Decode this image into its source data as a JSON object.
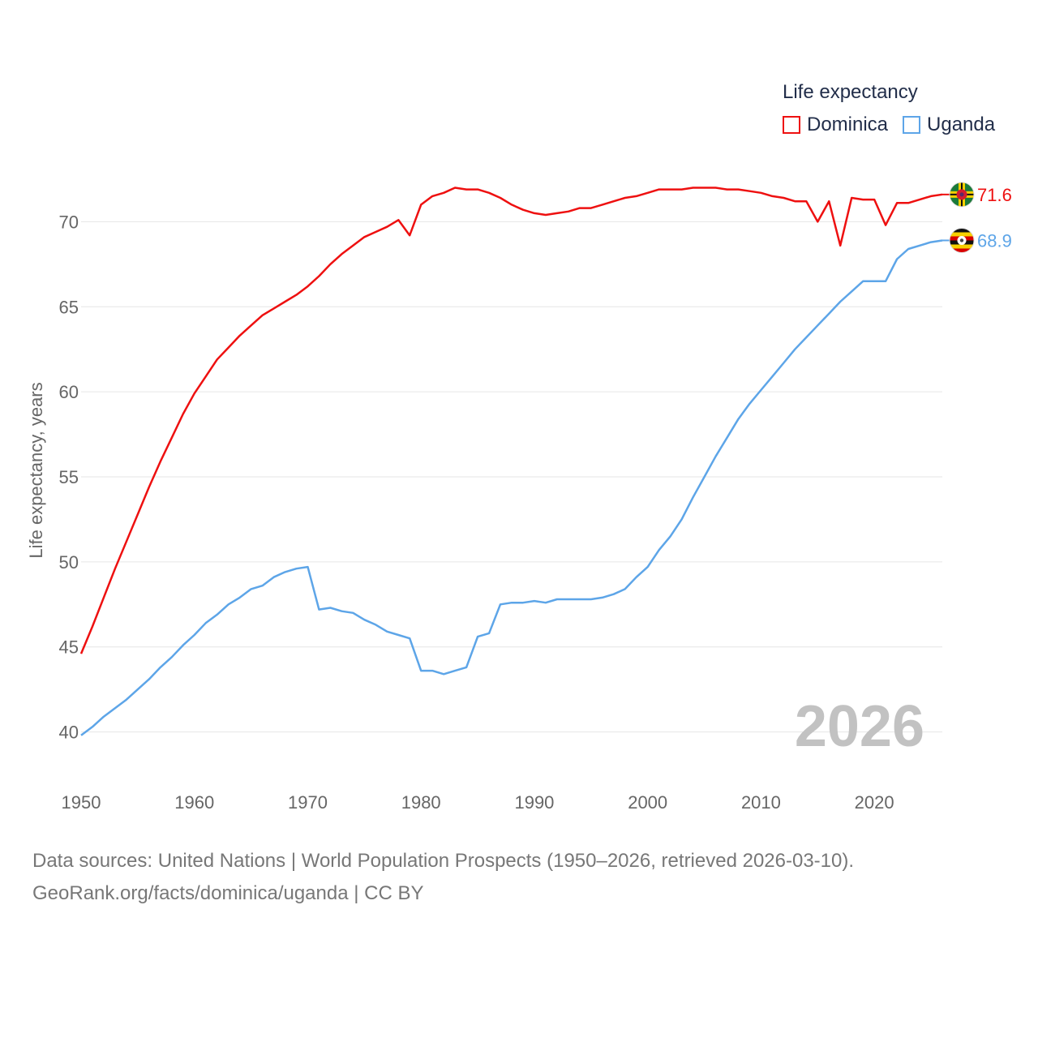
{
  "legend": {
    "title": "Life expectancy"
  },
  "footer": {
    "sources": "Data sources: United Nations | World Population Prospects (1950–2026, retrieved 2026-03-10).",
    "link": "GeoRank.org/facts/dominica/uganda | CC BY"
  },
  "chart_data": {
    "type": "line",
    "title": "",
    "legend_title": "Life expectancy",
    "ylabel": "Life expectancy, years",
    "xlabel": "",
    "xlim": [
      1950,
      2026
    ],
    "ylim": [
      37.5,
      73.5
    ],
    "x_ticks": [
      1950,
      1960,
      1970,
      1980,
      1990,
      2000,
      2010,
      2020
    ],
    "y_ticks": [
      40,
      45,
      50,
      55,
      60,
      65,
      70
    ],
    "grid": true,
    "legend_position": "top-right",
    "watermark_year": "2026",
    "x": [
      1950,
      1951,
      1952,
      1953,
      1954,
      1955,
      1956,
      1957,
      1958,
      1959,
      1960,
      1961,
      1962,
      1963,
      1964,
      1965,
      1966,
      1967,
      1968,
      1969,
      1970,
      1971,
      1972,
      1973,
      1974,
      1975,
      1976,
      1977,
      1978,
      1979,
      1980,
      1981,
      1982,
      1983,
      1984,
      1985,
      1986,
      1987,
      1988,
      1989,
      1990,
      1991,
      1992,
      1993,
      1994,
      1995,
      1996,
      1997,
      1998,
      1999,
      2000,
      2001,
      2002,
      2003,
      2004,
      2005,
      2006,
      2007,
      2008,
      2009,
      2010,
      2011,
      2012,
      2013,
      2014,
      2015,
      2016,
      2017,
      2018,
      2019,
      2020,
      2021,
      2022,
      2023,
      2024,
      2025,
      2026
    ],
    "series": [
      {
        "name": "Dominica",
        "color": "#ee1010",
        "end_label": "71.6",
        "flag": "dominica-flag",
        "values": [
          44.6,
          46.2,
          47.9,
          49.6,
          51.2,
          52.8,
          54.4,
          55.9,
          57.3,
          58.7,
          59.9,
          60.9,
          61.9,
          62.6,
          63.3,
          63.9,
          64.5,
          64.9,
          65.3,
          65.7,
          66.2,
          66.8,
          67.5,
          68.1,
          68.6,
          69.1,
          69.4,
          69.7,
          70.1,
          69.2,
          71.0,
          71.5,
          71.7,
          72.0,
          71.9,
          71.9,
          71.7,
          71.4,
          71.0,
          70.7,
          70.5,
          70.4,
          70.5,
          70.6,
          70.8,
          70.8,
          71.0,
          71.2,
          71.4,
          71.5,
          71.7,
          71.9,
          71.9,
          71.9,
          72.0,
          72.0,
          72.0,
          71.9,
          71.9,
          71.8,
          71.7,
          71.5,
          71.4,
          71.2,
          71.2,
          70.0,
          71.2,
          68.6,
          71.4,
          71.3,
          71.3,
          69.8,
          71.1,
          71.1,
          71.3,
          71.5,
          71.6
        ]
      },
      {
        "name": "Uganda",
        "color": "#5da5e8",
        "end_label": "68.9",
        "flag": "uganda-flag",
        "values": [
          39.8,
          40.3,
          40.9,
          41.4,
          41.9,
          42.5,
          43.1,
          43.8,
          44.4,
          45.1,
          45.7,
          46.4,
          46.9,
          47.5,
          47.9,
          48.4,
          48.6,
          49.1,
          49.4,
          49.6,
          49.7,
          47.2,
          47.3,
          47.1,
          47.0,
          46.6,
          46.3,
          45.9,
          45.7,
          45.5,
          43.6,
          43.6,
          43.4,
          43.6,
          43.8,
          45.6,
          45.8,
          47.5,
          47.6,
          47.6,
          47.7,
          47.6,
          47.8,
          47.8,
          47.8,
          47.8,
          47.9,
          48.1,
          48.4,
          49.1,
          49.7,
          50.7,
          51.5,
          52.5,
          53.8,
          55.0,
          56.2,
          57.3,
          58.4,
          59.3,
          60.1,
          60.9,
          61.7,
          62.5,
          63.2,
          63.9,
          64.6,
          65.3,
          65.9,
          66.5,
          66.5,
          66.5,
          67.8,
          68.4,
          68.6,
          68.8,
          68.9
        ]
      }
    ]
  }
}
